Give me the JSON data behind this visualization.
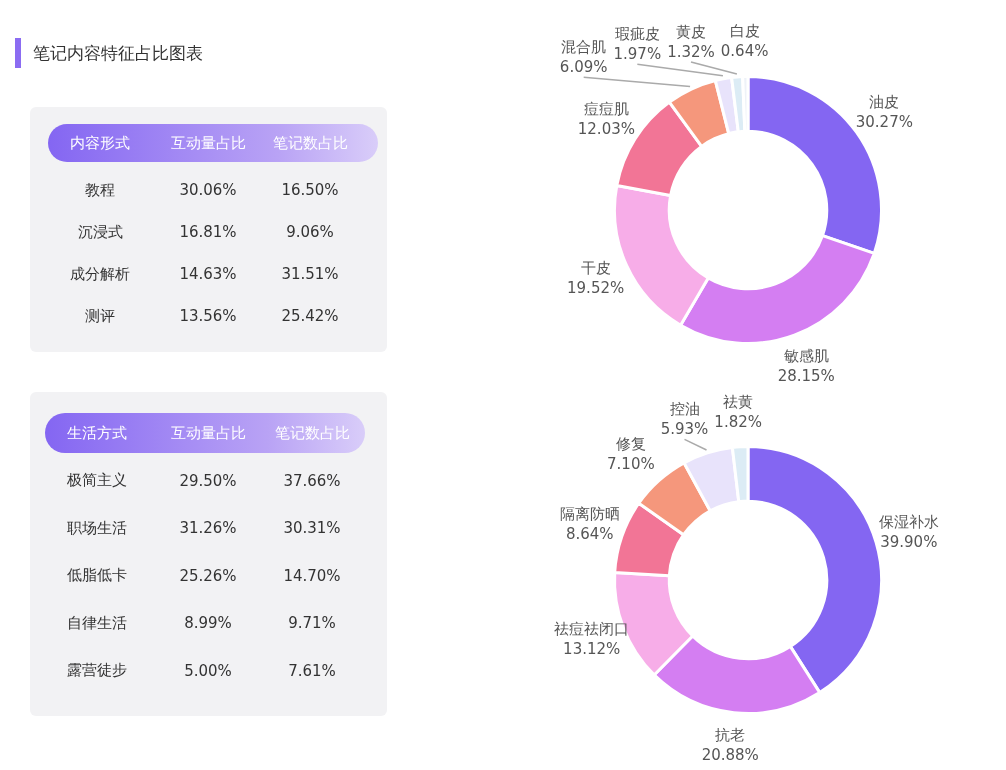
{
  "chart_data": [
    {
      "type": "other",
      "title": "笔记内容特征占比图表",
      "ylabel": "内容形式",
      "categories": [
        "教程",
        "沉浸式",
        "成分解析",
        "测评"
      ],
      "series": [
        {
          "name": "互动量占比",
          "values": [
            30.06,
            16.81,
            14.63,
            13.56
          ],
          "value_labels": [
            "30.06%",
            "16.81%",
            "14.63%",
            "13.56%"
          ]
        },
        {
          "name": "笔记数占比",
          "values": [
            16.5,
            9.06,
            31.51,
            25.42
          ],
          "value_labels": [
            "16.50%",
            "9.06%",
            "31.51%",
            "25.42%"
          ]
        }
      ]
    },
    {
      "type": "donut",
      "categories": [
        "油皮",
        "敏感肌",
        "干皮",
        "痘痘肌",
        "混合肌",
        "瑕疵皮",
        "黄皮",
        "白皮"
      ],
      "values": [
        30.27,
        28.15,
        19.52,
        12.03,
        6.09,
        1.97,
        1.32,
        0.64
      ],
      "value_labels": [
        "30.27%",
        "28.15%",
        "19.52%",
        "12.03%",
        "6.09%",
        "1.97%",
        "1.32%",
        "0.64%"
      ],
      "colors": [
        "#8466f2",
        "#d47ef2",
        "#f7ade8",
        "#f27596",
        "#f5977c",
        "#e8e3fb",
        "#dcecf5",
        "#eef2f8"
      ]
    },
    {
      "type": "other",
      "ylabel": "生活方式",
      "categories": [
        "极简主义",
        "职场生活",
        "低脂低卡",
        "自律生活",
        "露营徒步"
      ],
      "series": [
        {
          "name": "互动量占比",
          "values": [
            29.5,
            31.26,
            25.26,
            8.99,
            5.0
          ],
          "value_labels": [
            "29.50%",
            "31.26%",
            "25.26%",
            "8.99%",
            "5.00%"
          ]
        },
        {
          "name": "笔记数占比",
          "values": [
            37.66,
            30.31,
            14.7,
            9.71,
            7.61
          ],
          "value_labels": [
            "37.66%",
            "30.31%",
            "14.70%",
            "9.71%",
            "7.61%"
          ]
        }
      ]
    },
    {
      "type": "donut",
      "categories": [
        "保湿补水",
        "抗老",
        "祛痘祛闭口",
        "隔离防晒",
        "修复",
        "控油",
        "祛黄"
      ],
      "values": [
        39.9,
        20.88,
        13.12,
        8.64,
        7.1,
        5.93,
        1.82
      ],
      "value_labels": [
        "39.90%",
        "20.88%",
        "13.12%",
        "8.64%",
        "7.10%",
        "5.93%",
        "1.82%"
      ],
      "colors": [
        "#8466f2",
        "#d47ef2",
        "#f7ade8",
        "#f27596",
        "#f5977c",
        "#e8e3fb",
        "#dcecf5"
      ]
    }
  ]
}
